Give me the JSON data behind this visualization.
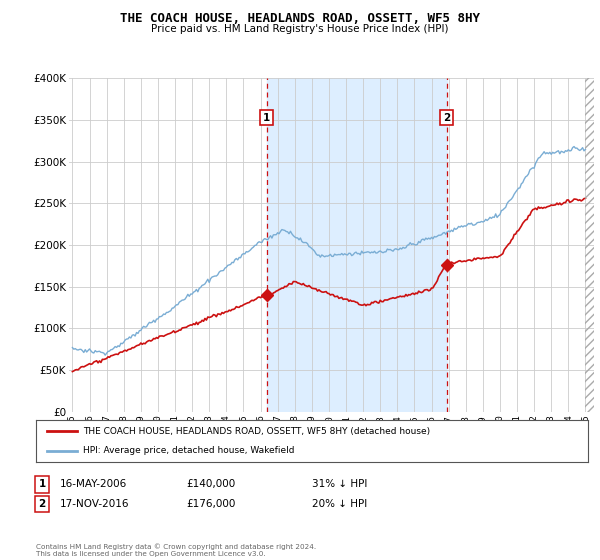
{
  "title": "THE COACH HOUSE, HEADLANDS ROAD, OSSETT, WF5 8HY",
  "subtitle": "Price paid vs. HM Land Registry's House Price Index (HPI)",
  "legend_line1": "THE COACH HOUSE, HEADLANDS ROAD, OSSETT, WF5 8HY (detached house)",
  "legend_line2": "HPI: Average price, detached house, Wakefield",
  "sale1_date": "16-MAY-2006",
  "sale1_price": 140000,
  "sale1_pct": "31% ↓ HPI",
  "sale2_date": "17-NOV-2016",
  "sale2_price": 176000,
  "sale2_pct": "20% ↓ HPI",
  "footer": "Contains HM Land Registry data © Crown copyright and database right 2024.\nThis data is licensed under the Open Government Licence v3.0.",
  "hpi_color": "#7aadd4",
  "price_color": "#cc1111",
  "vline_color": "#cc1111",
  "background_color": "#ffffff",
  "grid_color": "#cccccc",
  "shade_color": "#ddeeff",
  "ylim_max": 400000,
  "xlim_start": 1994.8,
  "xlim_end": 2025.5,
  "sale1_year": 2006.37,
  "sale2_year": 2016.88
}
